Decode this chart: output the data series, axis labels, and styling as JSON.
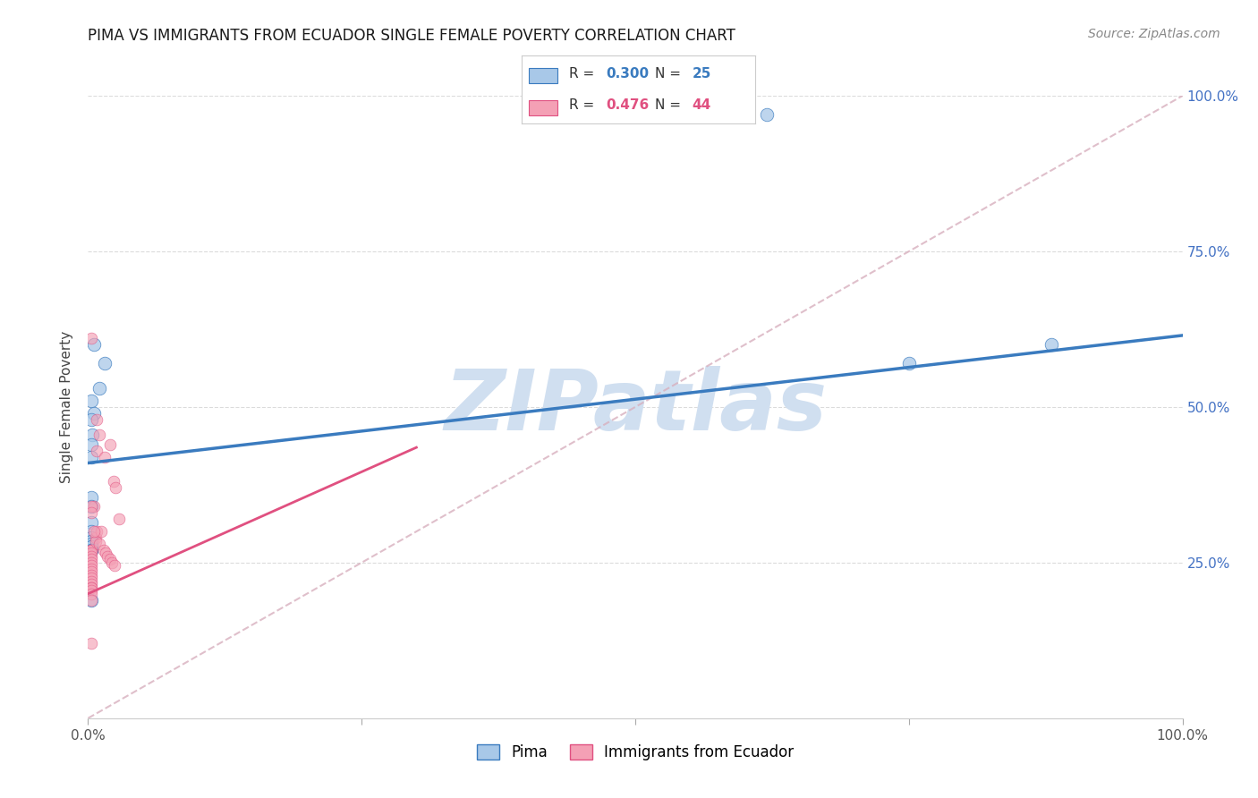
{
  "title": "PIMA VS IMMIGRANTS FROM ECUADOR SINGLE FEMALE POVERTY CORRELATION CHART",
  "source": "Source: ZipAtlas.com",
  "ylabel": "Single Female Poverty",
  "legend_label_1": "Pima",
  "legend_label_2": "Immigrants from Ecuador",
  "R1": "0.300",
  "N1": "25",
  "R2": "0.476",
  "N2": "44",
  "color_blue": "#a8c8e8",
  "color_pink": "#f4a0b5",
  "line_color_blue": "#3a7bbf",
  "line_color_pink": "#e05080",
  "diag_color": "#d8b0be",
  "watermark_color": "#d0dff0",
  "pima_x": [
    0.62,
    0.005,
    0.015,
    0.01,
    0.003,
    0.005,
    0.003,
    0.004,
    0.003,
    0.003,
    0.003,
    0.003,
    0.003,
    0.003,
    0.003,
    0.003,
    0.003,
    0.003,
    0.003,
    0.003,
    0.003,
    0.003,
    0.003,
    0.75,
    0.88
  ],
  "pima_y": [
    0.97,
    0.6,
    0.57,
    0.53,
    0.51,
    0.49,
    0.48,
    0.455,
    0.44,
    0.42,
    0.355,
    0.34,
    0.315,
    0.3,
    0.29,
    0.285,
    0.285,
    0.28,
    0.275,
    0.275,
    0.27,
    0.27,
    0.19,
    0.57,
    0.6
  ],
  "ecuador_x": [
    0.003,
    0.003,
    0.003,
    0.003,
    0.003,
    0.003,
    0.003,
    0.003,
    0.003,
    0.003,
    0.003,
    0.003,
    0.003,
    0.003,
    0.003,
    0.003,
    0.003,
    0.003,
    0.003,
    0.003,
    0.007,
    0.007,
    0.008,
    0.01,
    0.012,
    0.014,
    0.016,
    0.018,
    0.02,
    0.022,
    0.024,
    0.008,
    0.01,
    0.02,
    0.023,
    0.025,
    0.028,
    0.008,
    0.015,
    0.005,
    0.003,
    0.005,
    0.003,
    0.003
  ],
  "ecuador_y": [
    0.27,
    0.27,
    0.27,
    0.265,
    0.26,
    0.255,
    0.25,
    0.245,
    0.24,
    0.235,
    0.23,
    0.225,
    0.22,
    0.215,
    0.21,
    0.21,
    0.205,
    0.2,
    0.19,
    0.12,
    0.29,
    0.285,
    0.3,
    0.28,
    0.3,
    0.27,
    0.265,
    0.26,
    0.255,
    0.25,
    0.245,
    0.43,
    0.455,
    0.44,
    0.38,
    0.37,
    0.32,
    0.48,
    0.42,
    0.3,
    0.61,
    0.34,
    0.34,
    0.33
  ],
  "xlim": [
    0.0,
    1.0
  ],
  "ylim": [
    0.0,
    1.0
  ],
  "background_color": "#ffffff",
  "grid_color": "#d8d8d8"
}
